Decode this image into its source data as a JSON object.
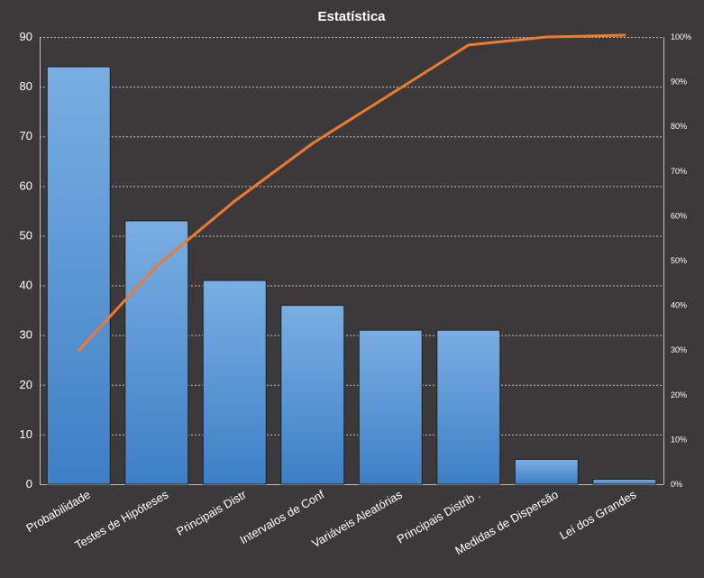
{
  "chart_data": {
    "type": "bar",
    "title": "Estatística",
    "categories": [
      "Probabilidade",
      "Testes de Hipóteses",
      "Principais Distr",
      "Intervalos de Conf",
      "Variáveis Aleatórias",
      "Principais Distrib .",
      "Medidas de Dispersão",
      "Lei dos Grandes"
    ],
    "series": [
      {
        "type": "bar",
        "axis": "left",
        "values": [
          84,
          53,
          41,
          36,
          31,
          31,
          5,
          1
        ]
      },
      {
        "type": "line",
        "axis": "right",
        "values": [
          29.9,
          48.8,
          63.3,
          76.2,
          87.2,
          98.2,
          100.0,
          100.4
        ]
      }
    ],
    "y_left": {
      "range": [
        0,
        90
      ],
      "ticks": [
        "0",
        "10",
        "20",
        "30",
        "40",
        "50",
        "60",
        "70",
        "80",
        "90"
      ]
    },
    "y_right": {
      "range": [
        0,
        100
      ],
      "ticks": [
        "0%",
        "10%",
        "20%",
        "30%",
        "40%",
        "50%",
        "60%",
        "70%",
        "80%",
        "90%",
        "100%"
      ]
    },
    "grid": true,
    "colors": {
      "background": "#3b3939",
      "bar_top": "#7aaee3",
      "bar_bottom": "#3d7fc5",
      "line": "#ee7a30",
      "grid": "#bfbfbf",
      "text": "#ffffff"
    }
  }
}
